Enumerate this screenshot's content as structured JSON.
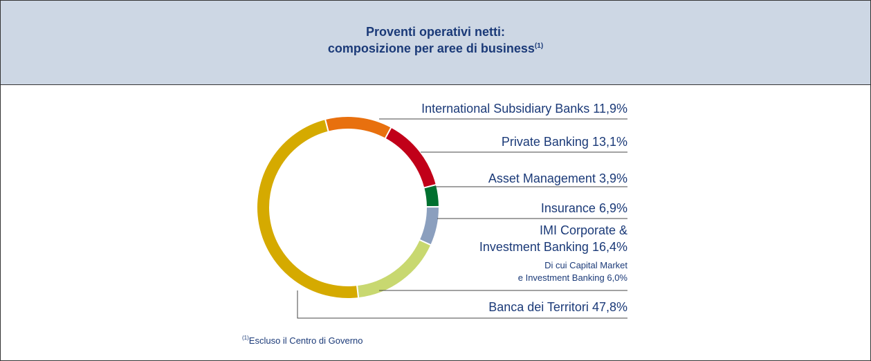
{
  "chart_data": {
    "type": "donut",
    "title": "Proventi operativi netti:",
    "subtitle": "composizione per aree di business",
    "title_note_marker": "(1)",
    "categories": [
      "International Subsidiary Banks",
      "Private Banking",
      "Asset Management",
      "Insurance",
      "IMI Corporate &\nInvestment Banking",
      "Banca dei Territori"
    ],
    "values": [
      11.9,
      13.1,
      3.9,
      6.9,
      16.4,
      47.8
    ],
    "value_labels": [
      "11,9%",
      "13,1%",
      "3,9%",
      "6,9%",
      "16,4%",
      "47,8%"
    ],
    "colors": [
      "#e8700e",
      "#c10019",
      "#00702f",
      "#8b9fbe",
      "#c8d870",
      "#d5aa00"
    ],
    "annotations": [
      "Di cui Capital Market",
      "e Investment Banking 6,0%"
    ],
    "footnote": {
      "marker": "(1)",
      "text": "Escluso il Centro di Governo"
    }
  }
}
